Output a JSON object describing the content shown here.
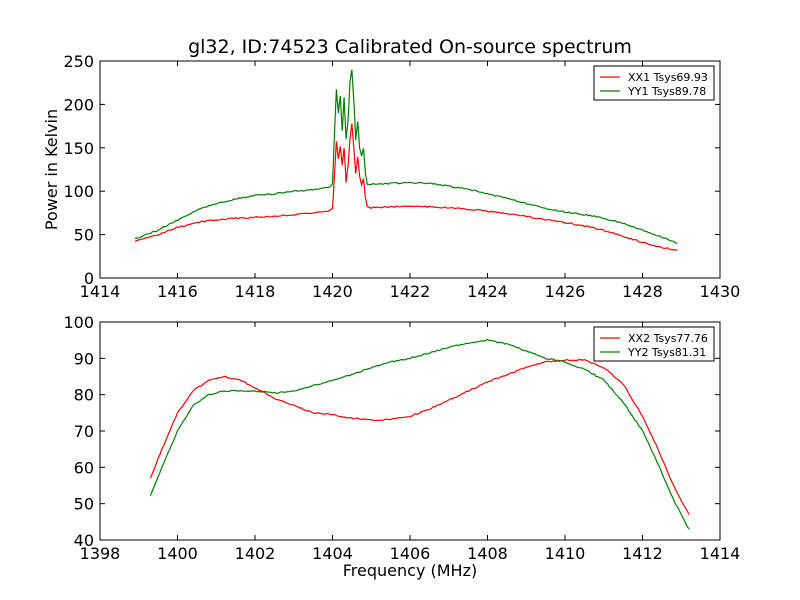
{
  "figure": {
    "title": "gl32, ID:74523 Calibrated On-source spectrum",
    "xlabel": "Frequency (MHz)"
  },
  "chart_data": [
    {
      "type": "line",
      "title": "gl32, ID:74523 Calibrated On-source spectrum",
      "xlabel": "",
      "ylabel": "Power in Kelvin",
      "xlim": [
        1414,
        1430
      ],
      "ylim": [
        0,
        250
      ],
      "xticks": [
        "1414",
        "1416",
        "1418",
        "1420",
        "1422",
        "1424",
        "1426",
        "1428",
        "1430"
      ],
      "yticks": [
        "0",
        "50",
        "100",
        "150",
        "200",
        "250"
      ],
      "legend_position": "top-right",
      "grid": false,
      "series": [
        {
          "name": "XX1 Tsys69.93",
          "color": "#ff0000",
          "x": [
            1414.9,
            1415.5,
            1416.0,
            1416.5,
            1417.0,
            1417.5,
            1418.0,
            1418.5,
            1419.0,
            1419.5,
            1419.9,
            1420.0,
            1420.05,
            1420.1,
            1420.15,
            1420.2,
            1420.25,
            1420.3,
            1420.35,
            1420.4,
            1420.45,
            1420.5,
            1420.55,
            1420.6,
            1420.65,
            1420.7,
            1420.75,
            1420.8,
            1420.85,
            1420.9,
            1421.0,
            1421.5,
            1422.0,
            1422.5,
            1423.0,
            1423.5,
            1424.0,
            1424.5,
            1425.0,
            1425.5,
            1426.0,
            1426.5,
            1427.0,
            1427.5,
            1428.0,
            1428.5,
            1428.9
          ],
          "y": [
            42,
            50,
            58,
            64,
            67,
            69,
            70,
            71,
            73,
            75,
            77,
            80,
            118,
            158,
            138,
            152,
            130,
            150,
            110,
            128,
            160,
            178,
            150,
            120,
            140,
            118,
            108,
            115,
            92,
            82,
            81,
            82,
            83,
            82,
            81,
            79,
            77,
            74,
            71,
            67,
            64,
            60,
            55,
            48,
            41,
            35,
            32
          ]
        },
        {
          "name": "YY1 Tsys89.78",
          "color": "#008000",
          "x": [
            1414.9,
            1415.5,
            1416.0,
            1416.5,
            1417.0,
            1417.5,
            1418.0,
            1418.5,
            1419.0,
            1419.5,
            1419.9,
            1420.0,
            1420.05,
            1420.1,
            1420.15,
            1420.2,
            1420.25,
            1420.3,
            1420.35,
            1420.4,
            1420.45,
            1420.5,
            1420.55,
            1420.6,
            1420.65,
            1420.7,
            1420.75,
            1420.8,
            1420.85,
            1420.9,
            1421.0,
            1421.5,
            1422.0,
            1422.5,
            1423.0,
            1423.5,
            1424.0,
            1424.5,
            1425.0,
            1425.5,
            1426.0,
            1426.5,
            1427.0,
            1427.5,
            1428.0,
            1428.5,
            1428.9
          ],
          "y": [
            45,
            55,
            67,
            78,
            86,
            91,
            95,
            97,
            100,
            102,
            104,
            108,
            165,
            218,
            190,
            210,
            170,
            208,
            160,
            180,
            225,
            240,
            205,
            160,
            180,
            150,
            140,
            150,
            120,
            108,
            108,
            109,
            110,
            109,
            106,
            102,
            97,
            92,
            86,
            80,
            76,
            73,
            69,
            63,
            55,
            47,
            40
          ]
        }
      ]
    },
    {
      "type": "line",
      "title": "",
      "xlabel": "Frequency (MHz)",
      "ylabel": "",
      "xlim": [
        1398,
        1414
      ],
      "ylim": [
        40,
        100
      ],
      "xticks": [
        "1398",
        "1400",
        "1402",
        "1404",
        "1406",
        "1408",
        "1410",
        "1412",
        "1414"
      ],
      "yticks": [
        "40",
        "50",
        "60",
        "70",
        "80",
        "90",
        "100"
      ],
      "legend_position": "top-right",
      "grid": false,
      "series": [
        {
          "name": "XX2 Tsys77.76",
          "color": "#ff0000",
          "x": [
            1399.3,
            1399.6,
            1400.0,
            1400.4,
            1400.8,
            1401.2,
            1401.6,
            1402.0,
            1402.5,
            1403.0,
            1403.5,
            1404.0,
            1404.5,
            1405.0,
            1405.5,
            1406.0,
            1406.5,
            1407.0,
            1407.5,
            1408.0,
            1408.5,
            1409.0,
            1409.5,
            1410.0,
            1410.5,
            1411.0,
            1411.5,
            1412.0,
            1412.4,
            1412.8,
            1413.2
          ],
          "y": [
            57,
            65,
            75,
            81,
            84,
            85,
            84,
            82,
            79,
            77,
            75,
            74.5,
            73.5,
            73,
            73.2,
            74,
            76,
            78.5,
            81,
            83.5,
            85.5,
            87.5,
            89,
            89.5,
            89.5,
            87.5,
            83,
            74,
            65,
            55,
            47
          ]
        },
        {
          "name": "YY2 Tsys81.31",
          "color": "#008000",
          "x": [
            1399.3,
            1399.6,
            1400.0,
            1400.4,
            1400.8,
            1401.2,
            1401.6,
            1402.0,
            1402.5,
            1403.0,
            1403.5,
            1404.0,
            1404.5,
            1405.0,
            1405.5,
            1406.0,
            1406.5,
            1407.0,
            1407.5,
            1408.0,
            1408.5,
            1409.0,
            1409.5,
            1410.0,
            1410.5,
            1411.0,
            1411.5,
            1412.0,
            1412.4,
            1412.8,
            1413.2
          ],
          "y": [
            52,
            60,
            70,
            77,
            80,
            81,
            81,
            81,
            80.5,
            81,
            82.5,
            84,
            85.5,
            87.5,
            89,
            90,
            91.5,
            93,
            94.2,
            95,
            94,
            92,
            90,
            89,
            87,
            84,
            78,
            70,
            61,
            51,
            43
          ]
        }
      ]
    }
  ]
}
